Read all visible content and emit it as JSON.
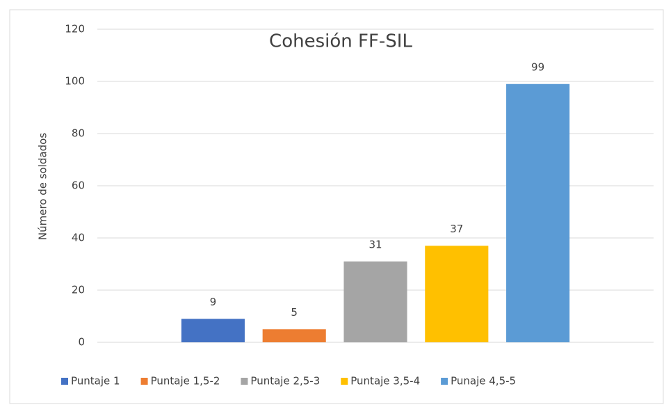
{
  "chart_data": {
    "type": "bar",
    "title": "Cohesión FF-SIL",
    "y_label": "Número de soldados",
    "categories": [
      null
    ],
    "series": [
      {
        "name": "Puntaje 1",
        "color": "#4472c4",
        "values": [
          9
        ]
      },
      {
        "name": "Puntaje 1,5-2",
        "color": "#ed7d31",
        "values": [
          5
        ]
      },
      {
        "name": "Puntaje 2,5-3",
        "color": "#a5a5a5",
        "values": [
          31
        ]
      },
      {
        "name": "Puntaje 3,5-4",
        "color": "#ffc000",
        "values": [
          37
        ]
      },
      {
        "name": "Punaje 4,5-5",
        "color": "#5b9bd5",
        "values": [
          99
        ]
      }
    ],
    "ylim": [
      0,
      120
    ],
    "yticks": [
      0,
      20,
      40,
      60,
      80,
      100,
      120
    ],
    "grid": true,
    "legend": "bottom"
  }
}
